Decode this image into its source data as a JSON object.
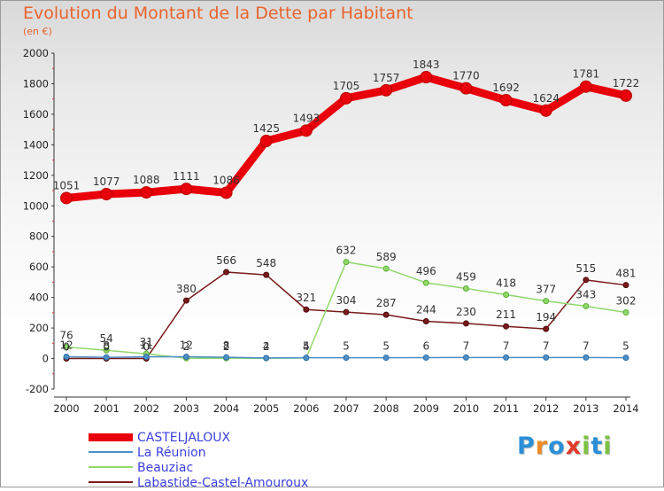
{
  "title": "Evolution du Montant de la Dette par Habitant",
  "unit": "(en €)",
  "brand": {
    "letters": [
      "P",
      "r",
      "o",
      "x",
      "i",
      "t",
      "i"
    ],
    "colors": [
      "#2b8fd8",
      "#f08a24",
      "#2b8fd8",
      "#e23b2b",
      "#7cc242",
      "#2b8fd8",
      "#7cc242"
    ]
  },
  "chart_data": {
    "type": "line",
    "title": "Evolution du Montant de la Dette par Habitant",
    "ylabel": "(en €)",
    "xlabel": "",
    "x": [
      2000,
      2001,
      2002,
      2003,
      2004,
      2005,
      2006,
      2007,
      2008,
      2009,
      2010,
      2011,
      2012,
      2013,
      2014
    ],
    "x_tick_labels": [
      "2000",
      "2001",
      "2002",
      "2003",
      "2004",
      "2005",
      "2006",
      "2007",
      "2008",
      "2009",
      "2010",
      "2011",
      "2012",
      "2013",
      "2014"
    ],
    "ylim": [
      -200,
      2000
    ],
    "y_ticks": [
      -200,
      0,
      200,
      400,
      600,
      800,
      1000,
      1200,
      1400,
      1600,
      1800,
      2000
    ],
    "grid": false,
    "legend_position": "bottom-left",
    "series": [
      {
        "name": "CASTELJALOUX",
        "color": "#e8000b",
        "values": [
          1051,
          1077,
          1088,
          1111,
          1086,
          1425,
          1493,
          1705,
          1757,
          1843,
          1770,
          1692,
          1624,
          1781,
          1722
        ],
        "labels": [
          "1051",
          "1077",
          "1088",
          "1111",
          "1086",
          "1425",
          "1493",
          "1705",
          "1757",
          "1843",
          "1770",
          "1692",
          "1624",
          "1781",
          "1722"
        ]
      },
      {
        "name": "La Réunion",
        "color": "#4d8fc7",
        "values": [
          12,
          8,
          11,
          12,
          8,
          4,
          5,
          5,
          5,
          6,
          7,
          7,
          7,
          7,
          5
        ],
        "labels": [
          "12",
          "8",
          "11",
          "12",
          "8",
          "4",
          "5",
          "5",
          "5",
          "6",
          "7",
          "7",
          "7",
          "7",
          "5"
        ]
      },
      {
        "name": "Beauziac",
        "color": "#90d86a",
        "values": [
          76,
          54,
          31,
          2,
          2,
          2,
          4,
          632,
          589,
          496,
          459,
          418,
          377,
          343,
          302
        ],
        "labels": [
          "76",
          "54",
          "31",
          "2",
          "2",
          "2",
          "4",
          "632",
          "589",
          "496",
          "459",
          "418",
          "377",
          "343",
          "302"
        ]
      },
      {
        "name": "Labastide-Castel-Amouroux",
        "color": "#7a1a1a",
        "values": [
          0,
          0,
          0,
          380,
          566,
          548,
          321,
          304,
          287,
          244,
          230,
          211,
          194,
          515,
          481
        ],
        "labels": [
          "0",
          "0",
          "0",
          "380",
          "566",
          "548",
          "321",
          "304",
          "287",
          "244",
          "230",
          "211",
          "194",
          "515",
          "481"
        ]
      }
    ]
  }
}
